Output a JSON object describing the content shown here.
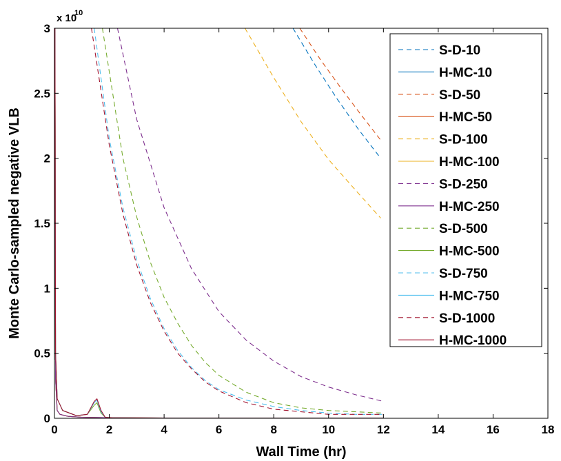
{
  "chart_data": {
    "type": "line",
    "title": "",
    "xlabel": "Wall Time (hr)",
    "ylabel": "Monte Carlo-sampled negative VLB",
    "xlim": [
      0,
      18
    ],
    "ylim": [
      0,
      3
    ],
    "xticks": [
      0,
      2,
      4,
      6,
      8,
      10,
      12,
      14,
      16,
      18
    ],
    "yticks": [
      0,
      0.5,
      1,
      1.5,
      2,
      2.5,
      3
    ],
    "xtick_labels": [
      "0",
      "2",
      "4",
      "6",
      "8",
      "10",
      "12",
      "14",
      "16",
      "18"
    ],
    "ytick_labels": [
      "0",
      "0.5",
      "1",
      "1.5",
      "2",
      "2.5",
      "3"
    ],
    "y_exponent_base": "x 10",
    "y_exponent_power": "10",
    "legend_position": "top-right",
    "series": [
      {
        "name": "S-D-10",
        "style": "dashed",
        "color": "#0072BD",
        "x": [
          8.7,
          9.5,
          10.3,
          11.1,
          11.9
        ],
        "y": [
          3.0,
          2.72,
          2.46,
          2.22,
          2.0
        ]
      },
      {
        "name": "H-MC-10",
        "style": "solid",
        "color": "#0072BD",
        "x": [
          0,
          0.005,
          0.02,
          0.04,
          0.1,
          0.2,
          0.5,
          1,
          2,
          4,
          8,
          12
        ],
        "y": [
          0.45,
          3.0,
          3.0,
          0.3,
          0.06,
          0.03,
          0.015,
          0.008,
          0.004,
          0.002,
          0.001,
          0.001
        ]
      },
      {
        "name": "S-D-50",
        "style": "dashed",
        "color": "#D95319",
        "x": [
          8.95,
          9.7,
          10.45,
          11.2,
          11.9
        ],
        "y": [
          3.0,
          2.76,
          2.54,
          2.33,
          2.14
        ]
      },
      {
        "name": "H-MC-50",
        "style": "solid",
        "color": "#D95319",
        "x": [
          0,
          0.005,
          0.02,
          0.04,
          0.1,
          0.2,
          0.5,
          1,
          2,
          4,
          8,
          12
        ],
        "y": [
          0.45,
          3.0,
          3.0,
          0.3,
          0.06,
          0.03,
          0.015,
          0.008,
          0.004,
          0.002,
          0.001,
          0.001
        ]
      },
      {
        "name": "S-D-100",
        "style": "dashed",
        "color": "#EDB120",
        "x": [
          6.95,
          8.0,
          9.0,
          10.0,
          11.0,
          11.9
        ],
        "y": [
          3.0,
          2.62,
          2.28,
          1.99,
          1.75,
          1.54
        ]
      },
      {
        "name": "H-MC-100",
        "style": "solid",
        "color": "#EDB120",
        "x": [
          0,
          0.005,
          0.02,
          0.04,
          0.1,
          0.2,
          0.5,
          1,
          2,
          4,
          8,
          12
        ],
        "y": [
          0.45,
          3.0,
          3.0,
          0.3,
          0.06,
          0.03,
          0.015,
          0.008,
          0.004,
          0.002,
          0.001,
          0.001
        ]
      },
      {
        "name": "S-D-250",
        "style": "dashed",
        "color": "#7E2F8E",
        "x": [
          2.3,
          3.0,
          4.0,
          5.0,
          6.0,
          7.0,
          8.0,
          9.0,
          10.0,
          11.0,
          12.0
        ],
        "y": [
          3.0,
          2.3,
          1.62,
          1.15,
          0.82,
          0.6,
          0.44,
          0.32,
          0.24,
          0.18,
          0.13
        ]
      },
      {
        "name": "H-MC-250",
        "style": "solid",
        "color": "#7E2F8E",
        "x": [
          0,
          0.005,
          0.02,
          0.04,
          0.1,
          0.2,
          0.5,
          1,
          2,
          4,
          8,
          12
        ],
        "y": [
          0.45,
          3.0,
          3.0,
          0.3,
          0.06,
          0.03,
          0.015,
          0.008,
          0.004,
          0.002,
          0.001,
          0.001
        ]
      },
      {
        "name": "S-D-500",
        "style": "dashed",
        "color": "#77AC30",
        "x": [
          1.75,
          2.5,
          3.0,
          3.5,
          4.0,
          4.5,
          5.0,
          5.5,
          6.0,
          7.0,
          8.0,
          9.0,
          10.0,
          11.0,
          12.0
        ],
        "y": [
          3.0,
          2.0,
          1.55,
          1.2,
          0.93,
          0.73,
          0.56,
          0.43,
          0.33,
          0.2,
          0.12,
          0.08,
          0.06,
          0.05,
          0.04
        ]
      },
      {
        "name": "H-MC-500",
        "style": "solid",
        "color": "#77AC30",
        "x": [
          0,
          0.005,
          0.02,
          0.04,
          0.1,
          0.3,
          0.8,
          1.2,
          1.45,
          1.55,
          1.7,
          1.85,
          2.1,
          3,
          5,
          8,
          12
        ],
        "y": [
          0.45,
          3.0,
          3.0,
          0.5,
          0.15,
          0.06,
          0.02,
          0.03,
          0.1,
          0.12,
          0.04,
          0.008,
          0.004,
          0.002,
          0.001,
          0.001,
          0.001
        ]
      },
      {
        "name": "S-D-750",
        "style": "dashed",
        "color": "#4DBEEE",
        "x": [
          1.45,
          2.0,
          2.5,
          3.0,
          3.5,
          4.0,
          4.5,
          5.0,
          5.5,
          6.0,
          7.0,
          8.0,
          9.0,
          10.0,
          11.0,
          12.0
        ],
        "y": [
          3.0,
          2.15,
          1.62,
          1.22,
          0.92,
          0.69,
          0.52,
          0.39,
          0.29,
          0.22,
          0.14,
          0.09,
          0.06,
          0.04,
          0.03,
          0.03
        ]
      },
      {
        "name": "H-MC-750",
        "style": "solid",
        "color": "#4DBEEE",
        "x": [
          0,
          0.005,
          0.02,
          0.04,
          0.1,
          0.3,
          0.8,
          1.2,
          1.45,
          1.55,
          1.7,
          1.85,
          2.1,
          3,
          5,
          8,
          12
        ],
        "y": [
          0.45,
          3.0,
          3.0,
          0.5,
          0.15,
          0.06,
          0.02,
          0.03,
          0.12,
          0.14,
          0.05,
          0.008,
          0.004,
          0.002,
          0.001,
          0.001,
          0.001
        ]
      },
      {
        "name": "S-D-1000",
        "style": "dashed",
        "color": "#A2142F",
        "x": [
          1.35,
          2.0,
          2.5,
          3.0,
          3.5,
          4.0,
          4.5,
          5.0,
          5.5,
          6.0,
          7.0,
          8.0,
          9.0,
          10.0,
          11.0,
          12.0
        ],
        "y": [
          3.0,
          2.1,
          1.57,
          1.18,
          0.89,
          0.67,
          0.5,
          0.38,
          0.28,
          0.21,
          0.12,
          0.07,
          0.05,
          0.03,
          0.03,
          0.03
        ]
      },
      {
        "name": "H-MC-1000",
        "style": "solid",
        "color": "#A2142F",
        "x": [
          0,
          0.005,
          0.02,
          0.04,
          0.1,
          0.3,
          0.8,
          1.2,
          1.45,
          1.55,
          1.7,
          1.85,
          2.1,
          3,
          5,
          8,
          12
        ],
        "y": [
          0.45,
          3.0,
          3.0,
          0.5,
          0.15,
          0.06,
          0.02,
          0.03,
          0.13,
          0.15,
          0.06,
          0.008,
          0.004,
          0.002,
          0.001,
          0.001,
          0.001
        ]
      }
    ]
  }
}
